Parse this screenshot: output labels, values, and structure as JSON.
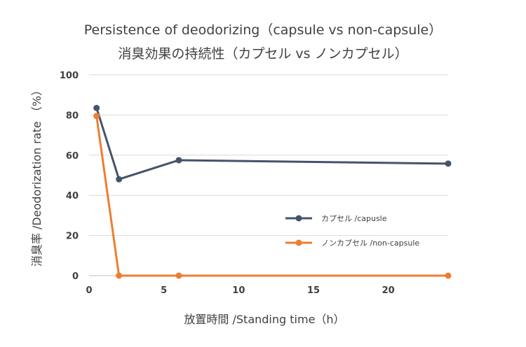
{
  "chart_data": {
    "type": "line",
    "title": "Persistence of deodorizing（capsule vs non-capsule）",
    "subtitle": "消臭効果の持続性（カプセル vs ノンカプセル）",
    "xlabel": "放置時間 /Standing time（h）",
    "ylabel": "消臭率 /Deodorization rate （%）",
    "xlim": [
      0,
      24
    ],
    "ylim": [
      0,
      100
    ],
    "xticks": [
      0,
      5,
      10,
      15,
      20
    ],
    "yticks": [
      0,
      20,
      40,
      60,
      80,
      100
    ],
    "grid": "horizontal",
    "legend_position": "right-center",
    "series": [
      {
        "name": "カプセル /capusle",
        "color": "#44546a",
        "x": [
          0.5,
          2,
          6,
          24
        ],
        "y": [
          83.5,
          48,
          57.5,
          55.8
        ]
      },
      {
        "name": "ノンカプセル /non-capsule",
        "color": "#ed7d31",
        "x": [
          0.5,
          2,
          6,
          24
        ],
        "y": [
          79.5,
          0,
          0,
          0
        ]
      }
    ]
  }
}
